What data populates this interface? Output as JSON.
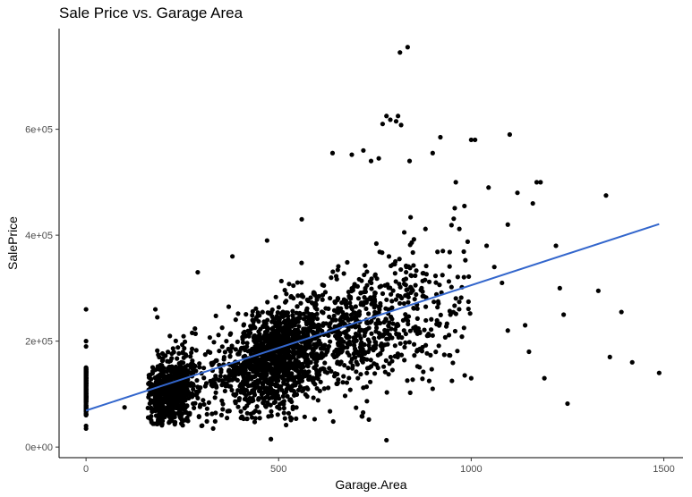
{
  "chart_data": {
    "type": "scatter",
    "title": "Sale Price vs. Garage Area",
    "xlabel": "Garage.Area",
    "ylabel": "SalePrice",
    "xlim": [
      -70,
      1550
    ],
    "ylim": [
      -20000,
      790000
    ],
    "x_ticks": [
      0,
      500,
      1000,
      1500
    ],
    "x_tick_labels": [
      "0",
      "500",
      "1000",
      "1500"
    ],
    "y_ticks": [
      0,
      200000,
      400000,
      600000
    ],
    "y_tick_labels": [
      "0e+00",
      "2e+05",
      "4e+05",
      "6e+05"
    ],
    "grid": false,
    "legend": "none",
    "colors": {
      "points": "#000000",
      "trend": "#3366cc",
      "axis": "#000000",
      "tick_text": "#4d4d4d"
    },
    "trend_line": {
      "type": "linear",
      "x": [
        0,
        1488
      ],
      "y": [
        69000,
        421000
      ]
    },
    "outliers": [
      {
        "x": 0,
        "y": 260000
      },
      {
        "x": 0,
        "y": 200000
      },
      {
        "x": 0,
        "y": 190000
      },
      {
        "x": 0,
        "y": 40000
      },
      {
        "x": 0,
        "y": 35000
      },
      {
        "x": 100,
        "y": 75000
      },
      {
        "x": 180,
        "y": 260000
      },
      {
        "x": 185,
        "y": 245000
      },
      {
        "x": 290,
        "y": 330000
      },
      {
        "x": 380,
        "y": 360000
      },
      {
        "x": 300,
        "y": 40000
      },
      {
        "x": 330,
        "y": 35000
      },
      {
        "x": 470,
        "y": 390000
      },
      {
        "x": 560,
        "y": 430000
      },
      {
        "x": 480,
        "y": 15000
      },
      {
        "x": 780,
        "y": 13000
      },
      {
        "x": 640,
        "y": 555000
      },
      {
        "x": 690,
        "y": 552000
      },
      {
        "x": 720,
        "y": 560000
      },
      {
        "x": 740,
        "y": 540000
      },
      {
        "x": 760,
        "y": 545000
      },
      {
        "x": 770,
        "y": 610000
      },
      {
        "x": 780,
        "y": 625000
      },
      {
        "x": 790,
        "y": 618000
      },
      {
        "x": 805,
        "y": 615000
      },
      {
        "x": 810,
        "y": 625000
      },
      {
        "x": 818,
        "y": 608000
      },
      {
        "x": 815,
        "y": 745000
      },
      {
        "x": 835,
        "y": 755000
      },
      {
        "x": 840,
        "y": 540000
      },
      {
        "x": 900,
        "y": 555000
      },
      {
        "x": 920,
        "y": 585000
      },
      {
        "x": 960,
        "y": 500000
      },
      {
        "x": 1000,
        "y": 580000
      },
      {
        "x": 1010,
        "y": 580000
      },
      {
        "x": 1045,
        "y": 490000
      },
      {
        "x": 1095,
        "y": 420000
      },
      {
        "x": 1100,
        "y": 590000
      },
      {
        "x": 1120,
        "y": 480000
      },
      {
        "x": 1160,
        "y": 460000
      },
      {
        "x": 1170,
        "y": 500000
      },
      {
        "x": 1180,
        "y": 500000
      },
      {
        "x": 1040,
        "y": 380000
      },
      {
        "x": 1060,
        "y": 340000
      },
      {
        "x": 1080,
        "y": 310000
      },
      {
        "x": 1095,
        "y": 220000
      },
      {
        "x": 1140,
        "y": 230000
      },
      {
        "x": 1150,
        "y": 180000
      },
      {
        "x": 1190,
        "y": 130000
      },
      {
        "x": 1220,
        "y": 380000
      },
      {
        "x": 1230,
        "y": 300000
      },
      {
        "x": 1240,
        "y": 250000
      },
      {
        "x": 1250,
        "y": 82000
      },
      {
        "x": 1330,
        "y": 295000
      },
      {
        "x": 1350,
        "y": 475000
      },
      {
        "x": 1360,
        "y": 170000
      },
      {
        "x": 1390,
        "y": 255000
      },
      {
        "x": 1418,
        "y": 160000
      },
      {
        "x": 1488,
        "y": 140000
      },
      {
        "x": 1000,
        "y": 130000
      },
      {
        "x": 950,
        "y": 125000
      },
      {
        "x": 900,
        "y": 110000
      }
    ]
  }
}
